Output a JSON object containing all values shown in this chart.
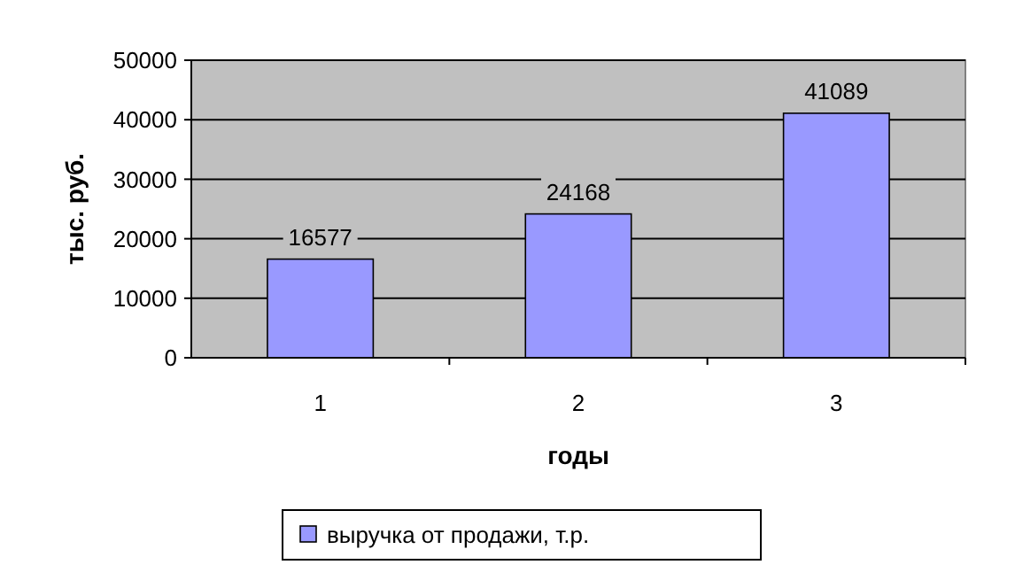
{
  "chart_data": {
    "type": "bar",
    "xlabel": "годы",
    "ylabel": "тыс. руб.",
    "categories": [
      "1",
      "2",
      "3"
    ],
    "series": [
      {
        "name": "выручка от продажи, т.р.",
        "color": "#9999ff",
        "values": [
          16577,
          24168,
          41089
        ]
      }
    ],
    "ylim": [
      0,
      50000
    ],
    "yticks": [
      0,
      10000,
      20000,
      30000,
      40000,
      50000
    ],
    "grid": "y",
    "data_labels": true,
    "legend": "bottom"
  }
}
